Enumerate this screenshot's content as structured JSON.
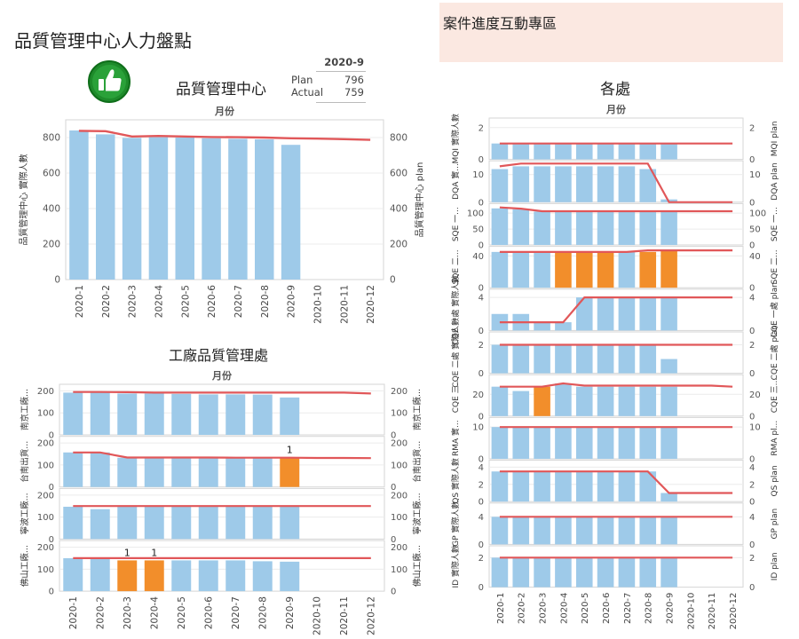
{
  "page": {
    "title": "品質管理中心人力盤點",
    "side_panel_title": "案件進度互動專區",
    "kpi_title": "品質管理中心",
    "kpi": {
      "period": "2020-9",
      "plan_label": "Plan",
      "plan_value": "796",
      "actual_label": "Actual",
      "actual_value": "759"
    },
    "section2_title": "工廠品質管理處",
    "section3_title": "各處",
    "column_header": "月份"
  },
  "colors": {
    "bar": "#9ecae9",
    "highlight": "#f28e2b",
    "line": "#e15759",
    "grid": "#ececec",
    "border": "#d6d6d6"
  },
  "icons": {
    "badge": "thumbs-up-icon"
  },
  "chart_data": [
    {
      "id": "center",
      "type": "bar+line",
      "title": "品質管理中心",
      "categories": [
        "2020-1",
        "2020-2",
        "2020-3",
        "2020-4",
        "2020-5",
        "2020-6",
        "2020-7",
        "2020-8",
        "2020-9",
        "2020-10",
        "2020-11",
        "2020-12"
      ],
      "xlabel": "月份",
      "ylabel": "品質管理中心 實際人數",
      "ylabel_right": "品質管理中心 plan",
      "ylim": [
        0,
        900
      ],
      "yticks": [
        0,
        200,
        400,
        600,
        800
      ],
      "series": [
        {
          "name": "品質管理中心 實際人數",
          "values": [
            840,
            818,
            798,
            802,
            800,
            796,
            793,
            790,
            759,
            null,
            null,
            null
          ]
        },
        {
          "name": "品質管理中心 plan",
          "values": [
            838,
            836,
            806,
            809,
            806,
            803,
            802,
            800,
            796,
            794,
            791,
            787
          ]
        }
      ]
    },
    {
      "id": "factory",
      "type": "small-multiples",
      "title": "工廠品質管理處",
      "categories": [
        "2020-1",
        "2020-2",
        "2020-3",
        "2020-4",
        "2020-5",
        "2020-6",
        "2020-7",
        "2020-8",
        "2020-9",
        "2020-10",
        "2020-11",
        "2020-12"
      ],
      "xlabel": "月份",
      "panels": [
        {
          "label": "南京工廠...",
          "label_right": "南京工廠...",
          "yticks": [
            0,
            100,
            200
          ],
          "ymax": 230,
          "actual": [
            192,
            192,
            188,
            188,
            186,
            184,
            184,
            183,
            170,
            null,
            null,
            null
          ],
          "plan": [
            195,
            195,
            194,
            192,
            192,
            192,
            192,
            192,
            192,
            192,
            192,
            188
          ],
          "highlight": [],
          "annotations": []
        },
        {
          "label": "台南出貨...",
          "label_right": "台南出貨...",
          "yticks": [
            0,
            100,
            200
          ],
          "ymax": 230,
          "actual": [
            157,
            157,
            133,
            133,
            133,
            133,
            133,
            133,
            133,
            null,
            null,
            null
          ],
          "plan": [
            157,
            157,
            134,
            134,
            134,
            134,
            133,
            133,
            133,
            132,
            132,
            131
          ],
          "highlight": [
            8
          ],
          "annotations": [
            {
              "index": 8,
              "text": "1"
            }
          ]
        },
        {
          "label": "寧波工廠...",
          "label_right": "寧波工廠...",
          "yticks": [
            0,
            100,
            200
          ],
          "ymax": 230,
          "actual": [
            147,
            136,
            149,
            149,
            149,
            148,
            148,
            148,
            148,
            null,
            null,
            null
          ],
          "plan": [
            150,
            150,
            150,
            150,
            150,
            150,
            150,
            150,
            150,
            150,
            150,
            150
          ],
          "highlight": [],
          "annotations": []
        },
        {
          "label": "佛山工廠...",
          "label_right": "佛山工廠...",
          "yticks": [
            0,
            100,
            200
          ],
          "ymax": 230,
          "actual": [
            150,
            150,
            140,
            140,
            140,
            140,
            140,
            136,
            134,
            null,
            null,
            null
          ],
          "plan": [
            150,
            150,
            150,
            150,
            150,
            150,
            150,
            150,
            150,
            150,
            150,
            150
          ],
          "highlight": [
            2,
            3
          ],
          "annotations": [
            {
              "index": 2,
              "text": "1"
            },
            {
              "index": 3,
              "text": "1"
            }
          ]
        }
      ]
    },
    {
      "id": "divisions",
      "type": "small-multiples",
      "title": "各處",
      "categories": [
        "2020-1",
        "2020-2",
        "2020-3",
        "2020-4",
        "2020-5",
        "2020-6",
        "2020-7",
        "2020-8",
        "2020-9",
        "2020-10",
        "2020-11",
        "2020-12"
      ],
      "xlabel": "月份",
      "panels": [
        {
          "label": "MQI 實際人數",
          "label_right": "MQI plan",
          "yticks": [
            0,
            2
          ],
          "ymax": 2.6,
          "actual": [
            1,
            1,
            1,
            1,
            1,
            1,
            1,
            1,
            1,
            null,
            null,
            null
          ],
          "plan": [
            1,
            1,
            1,
            1,
            1,
            1,
            1,
            1,
            1,
            1,
            1,
            1
          ],
          "highlight": [],
          "annotations": []
        },
        {
          "label": "DQA 實...",
          "label_right": "DQA plan",
          "yticks": [
            0,
            10
          ],
          "ymax": 15,
          "actual": [
            12,
            13,
            13,
            13,
            13,
            13,
            13,
            12,
            1,
            null,
            null,
            null
          ],
          "plan": [
            13,
            14,
            14,
            14,
            14,
            14,
            14,
            14,
            0,
            0,
            0,
            0
          ],
          "highlight": [],
          "annotations": []
        },
        {
          "label": "SQE 一...",
          "label_right": "SQE 一...",
          "yticks": [
            0,
            50,
            100
          ],
          "ymax": 130,
          "actual": [
            115,
            112,
            105,
            105,
            105,
            104,
            104,
            104,
            104,
            null,
            null,
            null
          ],
          "plan": [
            118,
            114,
            106,
            106,
            106,
            106,
            106,
            106,
            106,
            106,
            106,
            106
          ],
          "highlight": [],
          "annotations": []
        },
        {
          "label": "SQE 二...",
          "label_right": "SQE 二...",
          "yticks": [
            0,
            40
          ],
          "ymax": 52,
          "actual": [
            45,
            45,
            45,
            45,
            45,
            45,
            45,
            45,
            46,
            null,
            null,
            null
          ],
          "plan": [
            45,
            45,
            45,
            45,
            45,
            45,
            45,
            47,
            47,
            47,
            47,
            47
          ],
          "highlight": [
            3,
            4,
            5,
            7,
            8
          ],
          "annotations": []
        },
        {
          "label": "CQE 一處 實際人數",
          "label_right": "CQE 一處 plan",
          "yticks": [
            0,
            4
          ],
          "ymax": 5,
          "actual": [
            2,
            2,
            1,
            1,
            4,
            4,
            4,
            4,
            4,
            null,
            null,
            null
          ],
          "plan": [
            1,
            1,
            1,
            1,
            4,
            4,
            4,
            4,
            4,
            4,
            4,
            4
          ],
          "highlight": [],
          "annotations": []
        },
        {
          "label": "CQE 二處 實際人數",
          "label_right": "CQE 二處 plan",
          "yticks": [
            0,
            2
          ],
          "ymax": 2.9,
          "actual": [
            2,
            2,
            2,
            2,
            2,
            2,
            2,
            2,
            1,
            null,
            null,
            null
          ],
          "plan": [
            2,
            2,
            2,
            2,
            2,
            2,
            2,
            2,
            2,
            2,
            2,
            2
          ],
          "highlight": [],
          "annotations": []
        },
        {
          "label": "CQE 三...",
          "label_right": "CQE 三...",
          "yticks": [
            0,
            20
          ],
          "ymax": 38,
          "actual": [
            27,
            23,
            27,
            30,
            27,
            27,
            27,
            27,
            27,
            null,
            null,
            null
          ],
          "plan": [
            27,
            27,
            27,
            30,
            28,
            28,
            28,
            28,
            28,
            28,
            28,
            27
          ],
          "highlight": [
            2
          ],
          "annotations": []
        },
        {
          "label": "RMA 實...",
          "label_right": "RMA pl...",
          "yticks": [
            0,
            10
          ],
          "ymax": 13,
          "actual": [
            10,
            10,
            10,
            10,
            10,
            10,
            10,
            10,
            10,
            null,
            null,
            null
          ],
          "plan": [
            10,
            10,
            10,
            10,
            10,
            10,
            10,
            10,
            10,
            10,
            10,
            10
          ],
          "highlight": [],
          "annotations": []
        },
        {
          "label": "QS 實際人數",
          "label_right": "QS plan",
          "yticks": [
            0,
            2,
            4
          ],
          "ymax": 4.8,
          "actual": [
            3.5,
            3.5,
            3.5,
            3.5,
            3.5,
            3.5,
            3.5,
            3.5,
            1,
            null,
            null,
            null
          ],
          "plan": [
            3.5,
            3.5,
            3.5,
            3.5,
            3.5,
            3.5,
            3.5,
            3.5,
            1,
            1,
            1,
            1
          ],
          "highlight": [],
          "annotations": []
        },
        {
          "label": "GP 實際人數",
          "label_right": "GP plan",
          "yticks": [
            0,
            4
          ],
          "ymax": 6,
          "actual": [
            4,
            4,
            4,
            4,
            4,
            4,
            4,
            4,
            4,
            null,
            null,
            null
          ],
          "plan": [
            4,
            4,
            4,
            4,
            4,
            4,
            4,
            4,
            4,
            4,
            4,
            4
          ],
          "highlight": [],
          "annotations": []
        },
        {
          "label": "ID 實際人數",
          "label_right": "ID plan",
          "yticks": [
            0,
            2
          ],
          "ymax": 2.8,
          "actual": [
            2,
            2,
            2,
            2,
            2,
            2,
            2,
            2,
            2,
            null,
            null,
            null
          ],
          "plan": [
            2,
            2,
            2,
            2,
            2,
            2,
            2,
            2,
            2,
            2,
            2,
            2
          ],
          "highlight": [],
          "annotations": []
        }
      ]
    }
  ]
}
